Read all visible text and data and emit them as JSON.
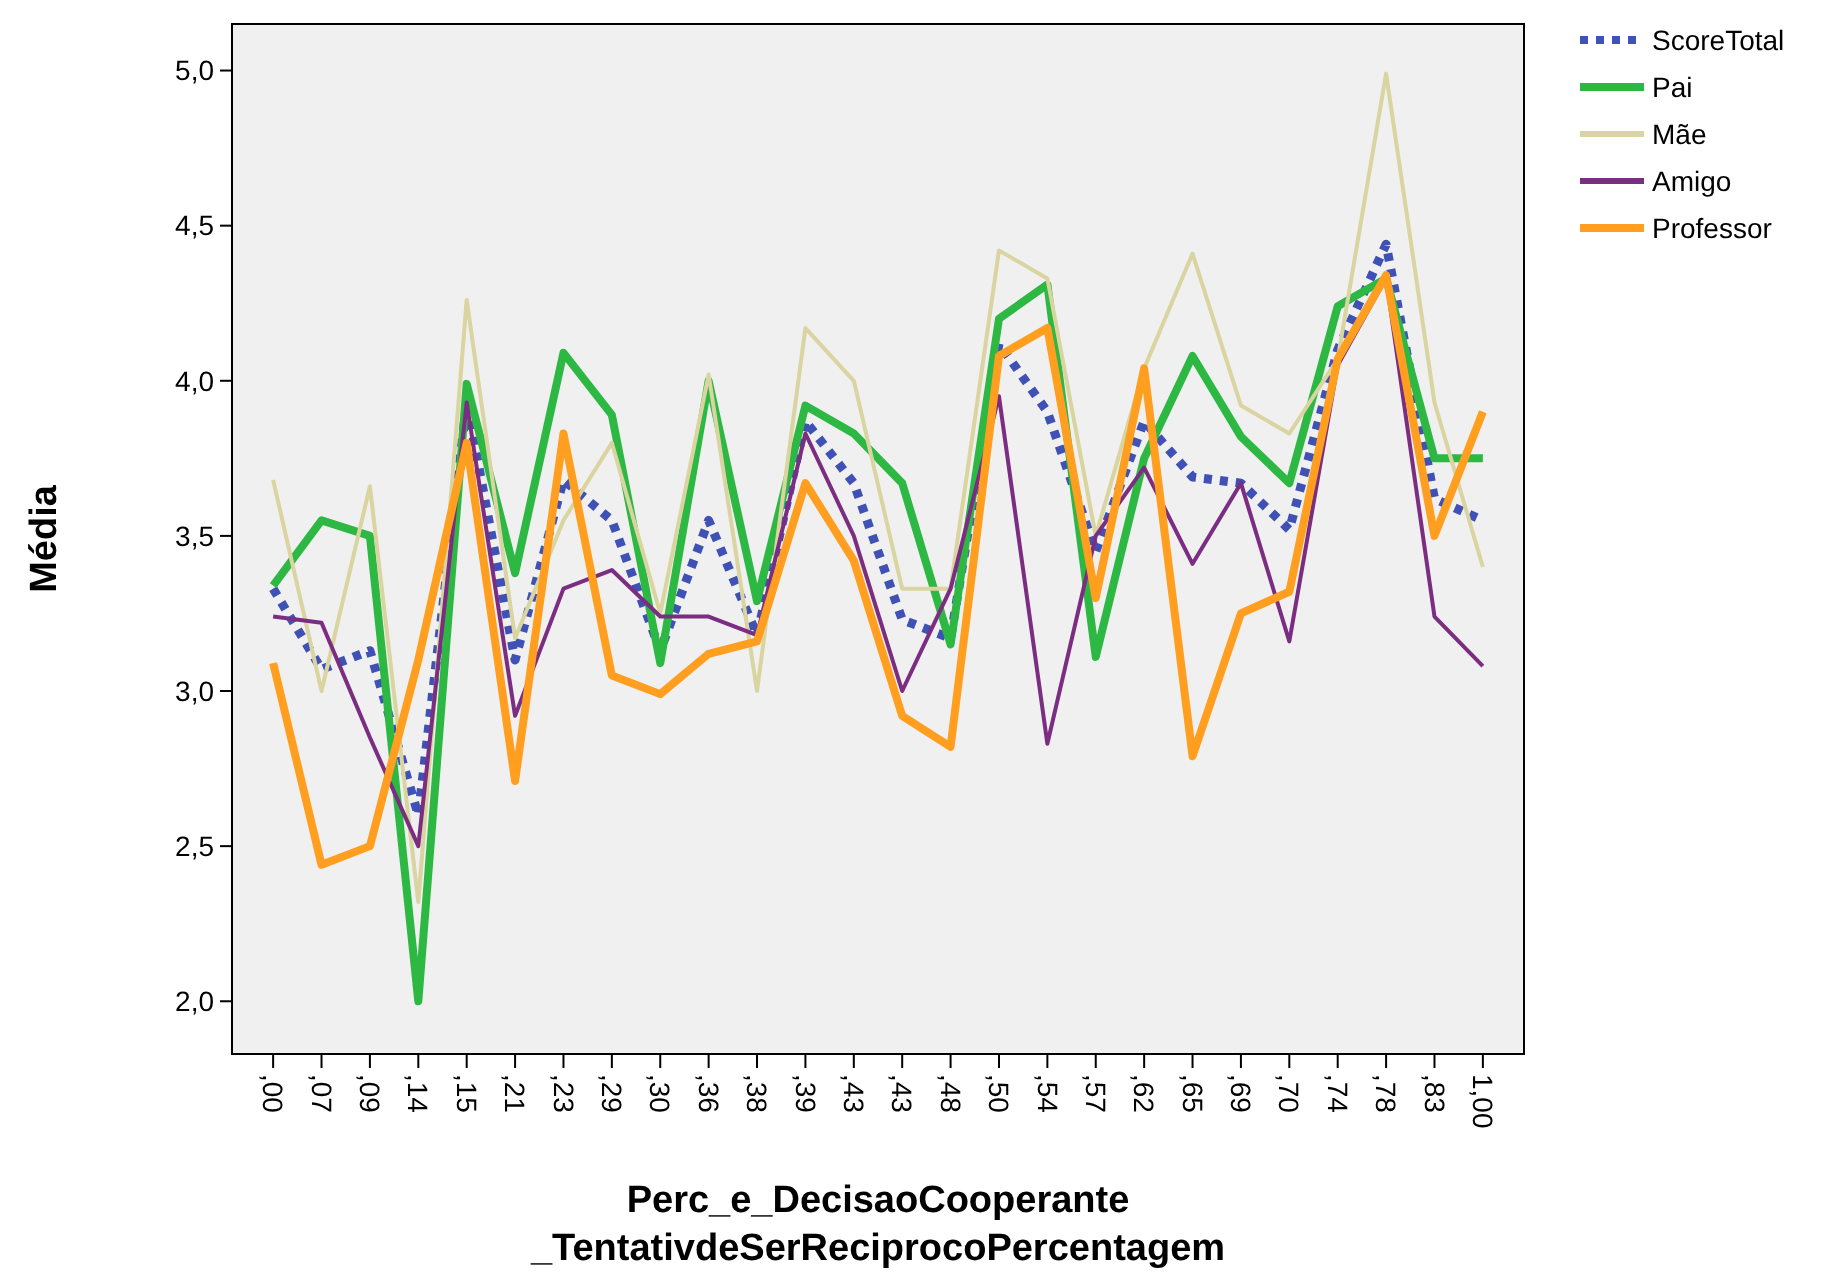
{
  "chart_data": {
    "type": "line",
    "xlabel": "Perc_e_DecisaoCooperante\n_TentativdeSerReciprocoPercentagem",
    "ylabel": "Média",
    "categories": [
      ",00",
      ",07",
      ",09",
      ",14",
      ",15",
      ",21",
      ",23",
      ",29",
      ",30",
      ",36",
      ",38",
      ",39",
      ",43",
      ",43",
      ",48",
      ",50",
      ",54",
      ",57",
      ",62",
      ",65",
      ",69",
      ",70",
      ",74",
      ",78",
      ",83",
      "1,00"
    ],
    "ylim": [
      1.83,
      5.15
    ],
    "yticks": [
      {
        "value": 2,
        "label": "2,0"
      },
      {
        "value": 2.5,
        "label": "2,5"
      },
      {
        "value": 3,
        "label": "3,0"
      },
      {
        "value": 3.5,
        "label": "3,5"
      },
      {
        "value": 4,
        "label": "4,0"
      },
      {
        "value": 4.5,
        "label": "4,5"
      },
      {
        "value": 5,
        "label": "5,0"
      }
    ],
    "legend": "right",
    "grid": false,
    "series": [
      {
        "name": "ScoreTotal",
        "color": "#3f51b5",
        "line_style": "dotted",
        "values": [
          3.33,
          3.07,
          3.13,
          2.6,
          3.93,
          3.1,
          3.68,
          3.55,
          3.13,
          3.55,
          3.18,
          3.87,
          3.67,
          3.23,
          3.17,
          4.12,
          3.9,
          3.45,
          3.87,
          3.69,
          3.67,
          3.52,
          4.1,
          4.44,
          3.62,
          3.55
        ]
      },
      {
        "name": "Pai",
        "color": "#2db843",
        "values": [
          3.34,
          3.55,
          3.5,
          2.0,
          3.99,
          3.38,
          4.09,
          3.89,
          3.09,
          4.0,
          3.29,
          3.92,
          3.83,
          3.67,
          3.15,
          4.2,
          4.31,
          3.11,
          3.75,
          4.08,
          3.82,
          3.67,
          4.24,
          4.33,
          3.75,
          3.75
        ]
      },
      {
        "name": "Mãe",
        "color": "#d9d4a0",
        "values": [
          3.68,
          3.0,
          3.66,
          2.32,
          4.26,
          3.17,
          3.55,
          3.8,
          3.25,
          4.02,
          3.0,
          4.17,
          4.0,
          3.33,
          3.33,
          4.42,
          4.33,
          3.5,
          4.04,
          4.41,
          3.92,
          3.83,
          4.07,
          4.99,
          3.93,
          3.4
        ]
      },
      {
        "name": "Amigo",
        "color": "#7b2d82",
        "values": [
          3.24,
          3.22,
          2.85,
          2.5,
          3.93,
          2.92,
          3.33,
          3.39,
          3.24,
          3.24,
          3.18,
          3.83,
          3.5,
          3.0,
          3.33,
          3.95,
          2.83,
          3.5,
          3.72,
          3.41,
          3.67,
          3.16,
          4.05,
          4.33,
          3.24,
          3.08
        ]
      },
      {
        "name": "Professor",
        "color": "#ff9e1f",
        "values": [
          3.09,
          2.44,
          2.5,
          3.1,
          3.8,
          2.71,
          3.83,
          3.05,
          2.99,
          3.12,
          3.16,
          3.67,
          3.42,
          2.92,
          2.82,
          4.08,
          4.17,
          3.3,
          4.04,
          2.79,
          3.25,
          3.32,
          4.07,
          4.34,
          3.5,
          3.9
        ]
      }
    ]
  }
}
